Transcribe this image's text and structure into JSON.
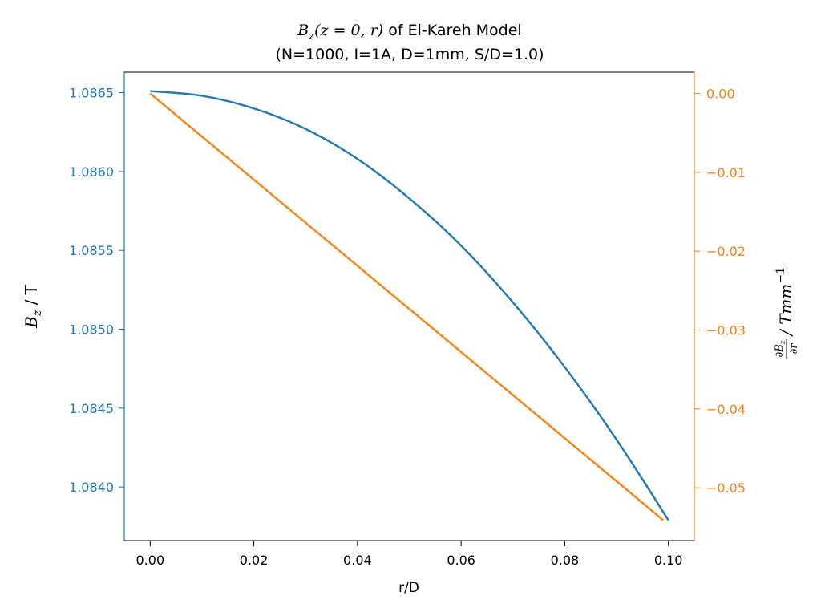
{
  "chart_data": {
    "type": "line",
    "title_line1_prefix": "B",
    "title_line1_sub": "z",
    "title_line1_args": "(z = 0, r)",
    "title_line1_suffix": " of El-Kareh Model",
    "title_line2": "(N=1000, I=1A, D=1mm, S/D=1.0)",
    "xlabel": "r/D",
    "ylabel_left_main": "B",
    "ylabel_left_sub": "z",
    "ylabel_left_unit": " / T",
    "ylabel_right_num": "∂B",
    "ylabel_right_num_sub": "z",
    "ylabel_right_den": "∂r",
    "ylabel_right_unit": " / Tmm",
    "ylabel_right_sup": "−1",
    "xlim": [
      -0.005,
      0.105
    ],
    "ylim_left": [
      1.08366,
      1.08663
    ],
    "ylim_right": [
      -0.0567,
      0.0027
    ],
    "x_ticks": [
      "0.00",
      "0.02",
      "0.04",
      "0.06",
      "0.08",
      "0.10"
    ],
    "x_tick_values": [
      0.0,
      0.02,
      0.04,
      0.06,
      0.08,
      0.1
    ],
    "y_left_ticks": [
      "1.0840",
      "1.0845",
      "1.0850",
      "1.0855",
      "1.0860",
      "1.0865"
    ],
    "y_left_tick_values": [
      1.084,
      1.0845,
      1.085,
      1.0855,
      1.086,
      1.0865
    ],
    "y_right_ticks": [
      "0.00",
      "−0.01",
      "−0.02",
      "−0.03",
      "−0.04",
      "−0.05"
    ],
    "y_right_tick_values": [
      0.0,
      -0.01,
      -0.02,
      -0.03,
      -0.04,
      -0.05
    ],
    "series": [
      {
        "axis": "left",
        "color": "#1f77b4",
        "x": [
          0.0,
          0.01,
          0.02,
          0.03,
          0.04,
          0.05,
          0.06,
          0.07,
          0.08,
          0.09,
          0.1
        ],
        "y": [
          1.08651,
          1.08648,
          1.0864,
          1.08627,
          1.08608,
          1.08583,
          1.08553,
          1.08517,
          1.08476,
          1.0843,
          1.08379
        ]
      },
      {
        "axis": "right",
        "color": "#ff7f0e",
        "x": [
          0.0,
          0.099
        ],
        "y": [
          0.0,
          -0.0541
        ]
      }
    ]
  }
}
